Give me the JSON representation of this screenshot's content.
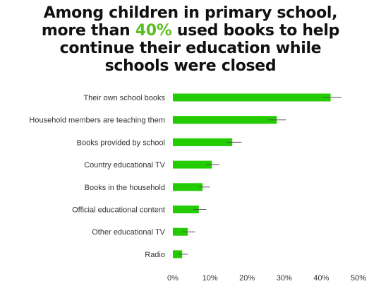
{
  "title": {
    "line1": "Among children in primary school,",
    "line2_pre": "more than ",
    "line2_highlight": "40%",
    "line2_post": " used books to help",
    "line3": "continue their education while",
    "line4": "schools were closed"
  },
  "colors": {
    "bar": "#22cc00",
    "highlight": "#5bbf21",
    "error_bar": "#555555",
    "axis_text": "#333333"
  },
  "chart_data": {
    "type": "bar",
    "orientation": "horizontal",
    "categories": [
      "Their own school books",
      "Household members are teaching them",
      "Books provided by school",
      "Country educational TV",
      "Books in the household",
      "Official educational content",
      "Other educational TV",
      "Radio"
    ],
    "values": [
      42.5,
      28,
      16,
      10.5,
      8,
      7,
      4,
      2.5
    ],
    "error_low": [
      40.5,
      25.5,
      14.5,
      9,
      7,
      5.5,
      2.5,
      1.5
    ],
    "error_high": [
      45.5,
      30.5,
      18.5,
      12.5,
      10,
      9,
      6,
      4
    ],
    "xlim": [
      0,
      50
    ],
    "xticks": [
      "0%",
      "10%",
      "20%",
      "30%",
      "40%",
      "50%"
    ],
    "grid": false,
    "legend": "none"
  }
}
